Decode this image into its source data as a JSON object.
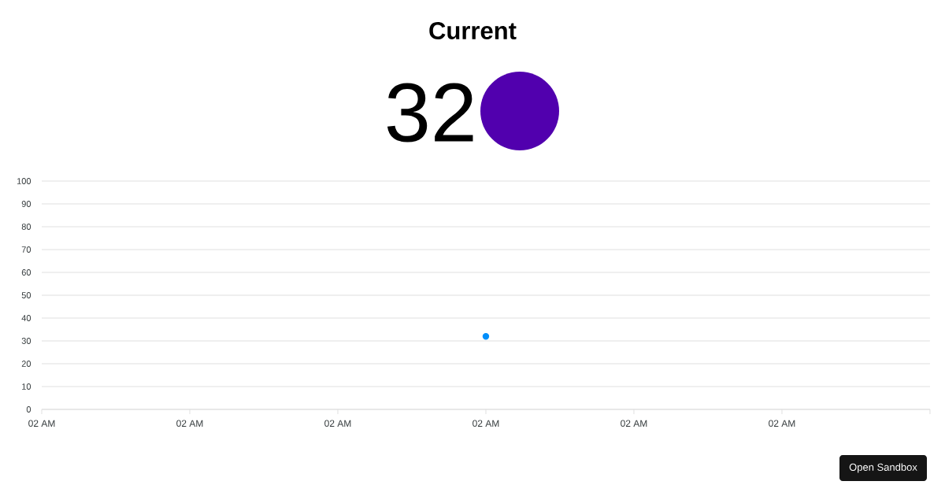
{
  "chart_data": {
    "type": "line",
    "title": "Current",
    "categories": [
      "02 AM",
      "02 AM",
      "02 AM",
      "02 AM",
      "02 AM",
      "02 AM",
      null
    ],
    "values": [
      null,
      null,
      null,
      32,
      null,
      null,
      null
    ],
    "color": "#008ffb",
    "marker": "circle",
    "ylim": [
      0,
      100
    ],
    "yticks": [
      0,
      10,
      20,
      30,
      40,
      50,
      60,
      70,
      80,
      90,
      100
    ],
    "grid": "y",
    "annotations": [
      "32",
      "Open Sandbox"
    ]
  }
}
